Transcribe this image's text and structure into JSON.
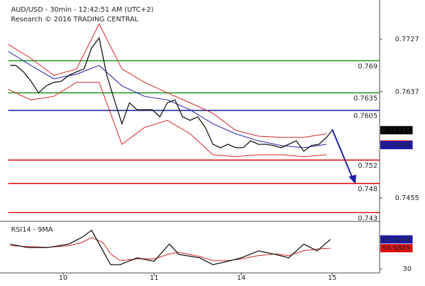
{
  "chart_data": [
    {
      "type": "line",
      "title": "AUD/USD - 30min - 12:42:51 AM (UTC+2)",
      "subtitle": "Research © 2016 TRADING CENTRAL",
      "xlim": [
        0,
        196
      ],
      "ylim": [
        0.7415,
        0.7794
      ],
      "yticks": [
        0.7727,
        0.7637,
        0.7455
      ],
      "series": [
        {
          "color": "#d42020",
          "x": [
            0,
            12,
            24,
            36,
            48,
            60,
            72,
            84,
            96,
            108,
            120,
            132,
            144,
            156,
            168
          ],
          "values": [
            0.7718,
            0.7694,
            0.7665,
            0.7676,
            0.7753,
            0.7676,
            0.7653,
            0.7635,
            0.7618,
            0.76,
            0.7571,
            0.7561,
            0.7559,
            0.7559,
            0.7565
          ]
        },
        {
          "color": "#d42020",
          "x": [
            0,
            12,
            24,
            36,
            48,
            60,
            72,
            84,
            96,
            108,
            120,
            132,
            144,
            156,
            168
          ],
          "values": [
            0.7641,
            0.7623,
            0.7629,
            0.7653,
            0.7653,
            0.7547,
            0.7576,
            0.7588,
            0.7565,
            0.7529,
            0.7526,
            0.7529,
            0.7529,
            0.7526,
            0.7529
          ]
        },
        {
          "color": "#1c1ca8",
          "x": [
            0,
            12,
            24,
            36,
            48,
            60,
            72,
            84,
            96,
            108,
            120,
            132,
            144,
            156,
            168
          ],
          "values": [
            0.7706,
            0.7682,
            0.7659,
            0.7667,
            0.7682,
            0.7647,
            0.7629,
            0.7623,
            0.7606,
            0.7582,
            0.7565,
            0.7553,
            0.7545,
            0.7541,
            0.7547
          ]
        },
        {
          "color": "#111111",
          "x": [
            1,
            4,
            8,
            12,
            16,
            20,
            24,
            28,
            32,
            36,
            40,
            44,
            48,
            52,
            56,
            60,
            64,
            68,
            72,
            76,
            80,
            84,
            88,
            92,
            96,
            100,
            104,
            108,
            112,
            116,
            120,
            124,
            128,
            132,
            136,
            140,
            144,
            148,
            152,
            156,
            160,
            164,
            168,
            171
          ],
          "values": [
            0.7682,
            0.7682,
            0.7671,
            0.7655,
            0.7635,
            0.7647,
            0.7653,
            0.7655,
            0.7665,
            0.7671,
            0.7676,
            0.7712,
            0.7729,
            0.7665,
            0.7623,
            0.7582,
            0.7618,
            0.7606,
            0.7606,
            0.7606,
            0.7594,
            0.7618,
            0.7623,
            0.7594,
            0.7588,
            0.7594,
            0.7576,
            0.7547,
            0.7541,
            0.7547,
            0.7541,
            0.7541,
            0.7553,
            0.7547,
            0.7547,
            0.7545,
            0.7541,
            0.7547,
            0.7553,
            0.7535,
            0.7545,
            0.7547,
            0.7559,
            0.7571
          ]
        }
      ],
      "levels": [
        {
          "value": 0.769,
          "color": "#2e9a2e"
        },
        {
          "value": 0.7635,
          "color": "#2e9a2e"
        },
        {
          "value": 0.7605,
          "color": "#1c1ca8"
        },
        {
          "value": 0.752,
          "color": "#e01010"
        },
        {
          "value": 0.748,
          "color": "#e01010"
        },
        {
          "value": 0.743,
          "color": "#e01010"
        }
      ],
      "price_tags": [
        {
          "value": 0.75711,
          "color": "#000000"
        },
        {
          "value": 0.75466,
          "color": "#e01010"
        },
        {
          "value": 0.75456,
          "color": "#1c1ca8"
        }
      ]
    },
    {
      "type": "line",
      "title": "RSI14 - 9MA",
      "xlim": [
        0,
        196
      ],
      "xticks": [
        {
          "value": 29,
          "label": "10"
        },
        {
          "value": 77,
          "label": "11"
        },
        {
          "value": 123,
          "label": "14"
        },
        {
          "value": 171,
          "label": "15"
        }
      ],
      "ylim": [
        25,
        85
      ],
      "yticks": [
        30
      ],
      "series": [
        {
          "color": "#d42020",
          "x": [
            1,
            10,
            21,
            32,
            39,
            44,
            50,
            54,
            59,
            68,
            77,
            85,
            90,
            101,
            108,
            116,
            123,
            132,
            141,
            148,
            156,
            163,
            170
          ],
          "values": [
            58,
            57,
            56,
            58,
            62,
            68,
            62,
            48,
            40,
            42,
            42,
            48,
            50,
            45,
            40,
            40,
            42,
            46,
            48,
            46,
            52,
            54,
            55
          ]
        },
        {
          "color": "#111111",
          "x": [
            1,
            10,
            21,
            32,
            39,
            44,
            50,
            54,
            59,
            68,
            77,
            85,
            90,
            101,
            108,
            116,
            123,
            132,
            141,
            148,
            156,
            163,
            170
          ],
          "values": [
            60,
            55.8,
            55.8,
            60,
            68.3,
            76.7,
            51.7,
            35,
            35,
            43.3,
            39.2,
            60,
            47.5,
            43.3,
            35,
            39.2,
            43.3,
            51.7,
            47.5,
            43.3,
            60,
            51.7,
            65.6
          ]
        }
      ],
      "price_tags": [
        {
          "value": 65.6044,
          "color": "#1c1ca8"
        },
        {
          "value": 54.9845,
          "color": "#e01010"
        }
      ]
    }
  ]
}
